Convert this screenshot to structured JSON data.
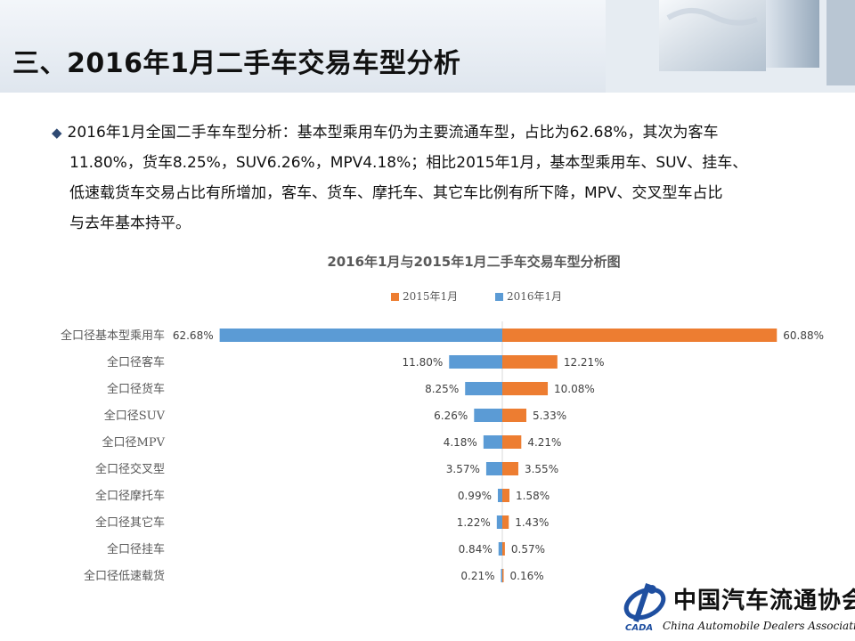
{
  "slide_title": "三、2016年1月二手车交易车型分析",
  "summary_lines": [
    "2016年1月全国二手车车型分析：基本型乘用车仍为主要流通车型，占比为62.68%，其次为客车",
    "11.80%，货车8.25%，SUV6.26%，MPV4.18%；相比2015年1月，基本型乘用车、SUV、挂车、",
    "低速载货车交易占比有所增加，客车、货车、摩托车、其它车比例有所下降，MPV、交叉型车占比",
    "与去年基本持平。"
  ],
  "logo": {
    "chinese": "中国汽车流通协会",
    "english": "China Automobile Dealers Association",
    "abbr": "CADA"
  },
  "colors": {
    "series_2015": "#ed7d31",
    "series_2016": "#5b9bd5",
    "title_gray": "#595959",
    "bullet": "#2f4a73"
  },
  "chart_data": {
    "type": "bar",
    "orientation": "horizontal-butterfly",
    "title": "2016年1月与2015年1月二手车交易车型分析图",
    "legend_position": "top",
    "categories": [
      "全口径基本型乘用车",
      "全口径客车",
      "全口径货车",
      "全口径SUV",
      "全口径MPV",
      "全口径交叉型",
      "全口径摩托车",
      "全口径其它车",
      "全口径挂车",
      "全口径低速载货"
    ],
    "series": [
      {
        "name": "2015年1月",
        "side": "right",
        "values": [
          60.88,
          12.21,
          10.08,
          5.33,
          4.21,
          3.55,
          1.58,
          1.43,
          0.57,
          0.16
        ],
        "labels": [
          "60.88%",
          "12.21%",
          "10.08%",
          "5.33%",
          "4.21%",
          "3.55%",
          "1.58%",
          "1.43%",
          "0.57%",
          "0.16%"
        ]
      },
      {
        "name": "2016年1月",
        "side": "left",
        "values": [
          62.68,
          11.8,
          8.25,
          6.26,
          4.18,
          3.57,
          0.99,
          1.22,
          0.84,
          0.21
        ],
        "labels": [
          "62.68%",
          "11.80%",
          "8.25%",
          "6.26%",
          "4.18%",
          "3.57%",
          "0.99%",
          "1.22%",
          "0.84%",
          "0.21%"
        ]
      }
    ],
    "grid": false
  }
}
